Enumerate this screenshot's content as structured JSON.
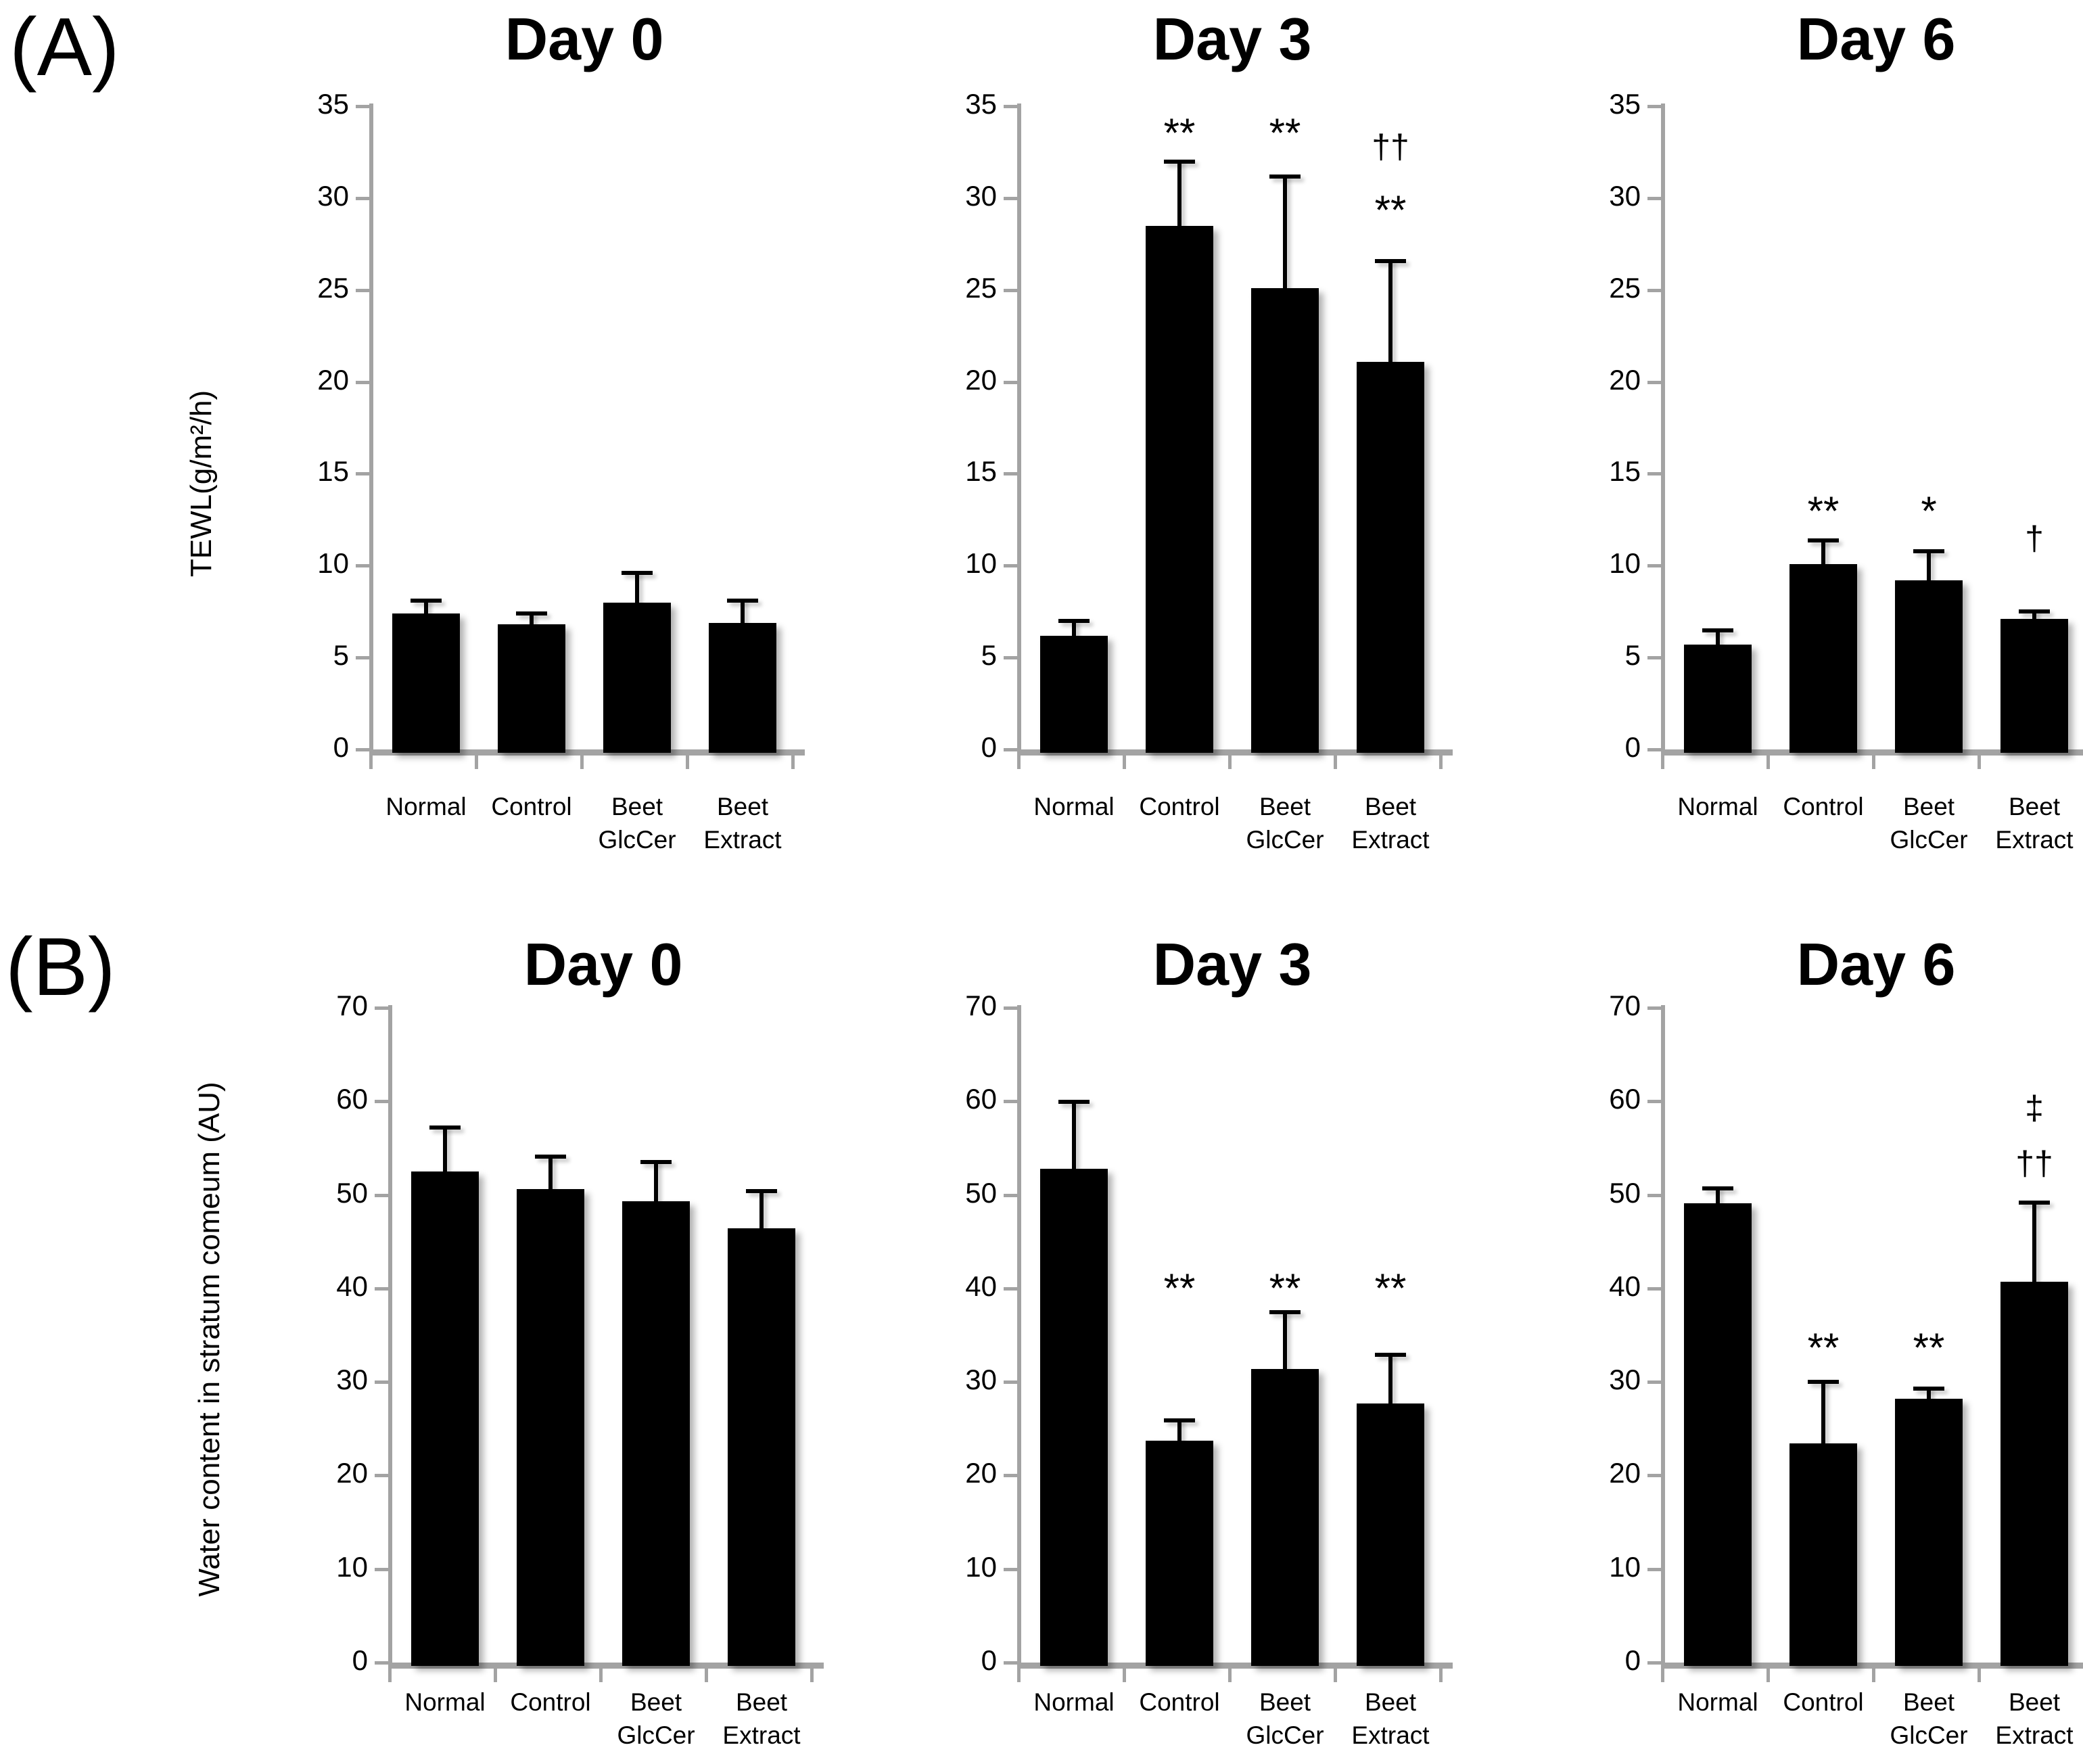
{
  "figure": {
    "panel_a_label": "(A)",
    "panel_b_label": "(B)"
  },
  "colors": {
    "bar": "#000000",
    "axis": "#a3a3a3",
    "text": "#000000",
    "background": "#ffffff"
  },
  "chart_data": [
    {
      "panel": "A",
      "type": "bar",
      "title": "Day 0",
      "ylabel": "TEWL(g/m²/h)",
      "ylim": [
        0,
        35
      ],
      "ytick_step": 5,
      "ytick_labels": [
        "0",
        "5",
        "10",
        "15",
        "20",
        "25",
        "30",
        "35"
      ],
      "grid": false,
      "categories": [
        "Normal",
        "Control",
        "Beet\nGlcCer",
        "Beet\nExtract"
      ],
      "values": [
        7.4,
        6.8,
        8.0,
        6.9
      ],
      "errors": [
        0.8,
        0.7,
        1.7,
        1.3
      ],
      "annotations": []
    },
    {
      "panel": "A",
      "type": "bar",
      "title": "Day 3",
      "ylim": [
        0,
        35
      ],
      "ytick_step": 5,
      "ytick_labels": [
        "0",
        "5",
        "10",
        "15",
        "20",
        "25",
        "30",
        "35"
      ],
      "grid": false,
      "categories": [
        "Normal",
        "Control",
        "Beet\nGlcCer",
        "Beet\nExtract"
      ],
      "values": [
        6.2,
        28.5,
        25.1,
        21.1
      ],
      "errors": [
        0.9,
        3.6,
        6.2,
        5.6
      ],
      "annotations": [
        {
          "bar": 1,
          "text": "**",
          "y": 33.8
        },
        {
          "bar": 2,
          "text": "**",
          "y": 33.8
        },
        {
          "bar": 3,
          "text": "††",
          "y": 32.8
        },
        {
          "bar": 3,
          "text": "**",
          "y": 29.6
        }
      ]
    },
    {
      "panel": "A",
      "type": "bar",
      "title": "Day 6",
      "ylim": [
        0,
        35
      ],
      "ytick_step": 5,
      "ytick_labels": [
        "0",
        "5",
        "10",
        "15",
        "20",
        "25",
        "30",
        "35"
      ],
      "grid": false,
      "categories": [
        "Normal",
        "Control",
        "Beet\nGlcCer",
        "Beet\nExtract"
      ],
      "values": [
        5.7,
        10.1,
        9.2,
        7.1
      ],
      "errors": [
        0.9,
        1.4,
        1.7,
        0.5
      ],
      "annotations": [
        {
          "bar": 1,
          "text": "**",
          "y": 13.2
        },
        {
          "bar": 2,
          "text": "*",
          "y": 13.2
        },
        {
          "bar": 3,
          "text": "†",
          "y": 11.5
        }
      ]
    },
    {
      "panel": "B",
      "type": "bar",
      "title": "Day 0",
      "ylabel": "Water content in stratum comeum (AU)",
      "ylim": [
        0,
        70
      ],
      "ytick_step": 10,
      "ytick_labels": [
        "0",
        "10",
        "20",
        "30",
        "40",
        "50",
        "60",
        "70"
      ],
      "grid": false,
      "categories": [
        "Normal",
        "Control",
        "Beet\nGlcCer",
        "Beet\nExtract"
      ],
      "values": [
        52.5,
        50.6,
        49.3,
        46.4
      ],
      "errors": [
        4.9,
        3.7,
        4.4,
        4.2
      ],
      "annotations": []
    },
    {
      "panel": "B",
      "type": "bar",
      "title": "Day 3",
      "ylim": [
        0,
        70
      ],
      "ytick_step": 10,
      "ytick_labels": [
        "0",
        "10",
        "20",
        "30",
        "40",
        "50",
        "60",
        "70"
      ],
      "grid": false,
      "categories": [
        "Normal",
        "Control",
        "Beet\nGlcCer",
        "Beet\nExtract"
      ],
      "values": [
        52.8,
        23.7,
        31.4,
        27.7
      ],
      "errors": [
        7.4,
        2.4,
        6.3,
        5.4
      ],
      "annotations": [
        {
          "bar": 1,
          "text": "**",
          "y": 40.5
        },
        {
          "bar": 2,
          "text": "**",
          "y": 40.5
        },
        {
          "bar": 3,
          "text": "**",
          "y": 40.5
        }
      ]
    },
    {
      "panel": "B",
      "type": "bar",
      "title": "Day 6",
      "ylim": [
        0,
        70
      ],
      "ytick_step": 10,
      "ytick_labels": [
        "0",
        "10",
        "20",
        "30",
        "40",
        "50",
        "60",
        "70"
      ],
      "grid": false,
      "categories": [
        "Normal",
        "Control",
        "Beet\nGlcCer",
        "Beet\nExtract"
      ],
      "values": [
        49.1,
        23.4,
        28.2,
        40.7
      ],
      "errors": [
        1.8,
        6.8,
        1.3,
        8.7
      ],
      "annotations": [
        {
          "bar": 1,
          "text": "**",
          "y": 34.1
        },
        {
          "bar": 2,
          "text": "**",
          "y": 34.1
        },
        {
          "bar": 3,
          "text": "‡",
          "y": 59.3
        },
        {
          "bar": 3,
          "text": "††",
          "y": 53.4
        }
      ]
    }
  ]
}
